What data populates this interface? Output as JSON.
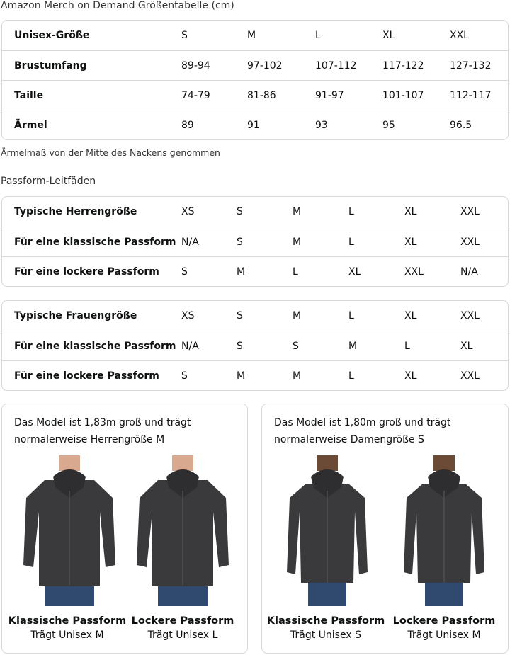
{
  "size_chart": {
    "title": "Amazon Merch on Demand Größentabelle (cm)",
    "rows": [
      [
        "Unisex-Größe",
        "S",
        "M",
        "L",
        "XL",
        "XXL"
      ],
      [
        "Brustumfang",
        "89-94",
        "97-102",
        "107-112",
        "117-122",
        "127-132"
      ],
      [
        "Taille",
        "74-79",
        "81-86",
        "91-97",
        "101-107",
        "112-117"
      ],
      [
        "Ärmel",
        "89",
        "91",
        "93",
        "95",
        "96.5"
      ]
    ],
    "note": "Ärmelmaß von der Mitte des Nackens genommen"
  },
  "fit_guide": {
    "title": "Passform-Leitfäden",
    "men": [
      [
        "Typische Herrengröße",
        "XS",
        "S",
        "M",
        "L",
        "XL",
        "XXL"
      ],
      [
        "Für eine klassische Passform",
        "N/A",
        "S",
        "M",
        "L",
        "XL",
        "XXL"
      ],
      [
        "Für eine lockere Passform",
        "S",
        "M",
        "L",
        "XL",
        "XXL",
        "N/A"
      ]
    ],
    "women": [
      [
        "Typische Frauengröße",
        "XS",
        "S",
        "M",
        "L",
        "XL",
        "XXL"
      ],
      [
        "Für eine klassische Passform",
        "N/A",
        "S",
        "S",
        "M",
        "L",
        "XL"
      ],
      [
        "Für eine lockere Passform",
        "S",
        "M",
        "M",
        "L",
        "XL",
        "XXL"
      ]
    ]
  },
  "models": [
    {
      "desc1": "Das Model ist 1,83m groß und trägt",
      "desc2": "normalerweise Herrengröße M",
      "fits": [
        {
          "title": "Klassische Passform",
          "sub": "Trägt Unisex M"
        },
        {
          "title": "Lockere Passform",
          "sub": "Trägt Unisex L"
        }
      ]
    },
    {
      "desc1": "Das Model ist 1,80m groß und trägt",
      "desc2": "normalerweise Damengröße S",
      "fits": [
        {
          "title": "Klassische Passform",
          "sub": "Trägt Unisex S"
        },
        {
          "title": "Lockere Passform",
          "sub": "Trägt Unisex M"
        }
      ]
    }
  ],
  "colors": {
    "hoodie": "#3a3a3c",
    "jeans": "#2f4a6e",
    "border": "#d5d9d9"
  }
}
